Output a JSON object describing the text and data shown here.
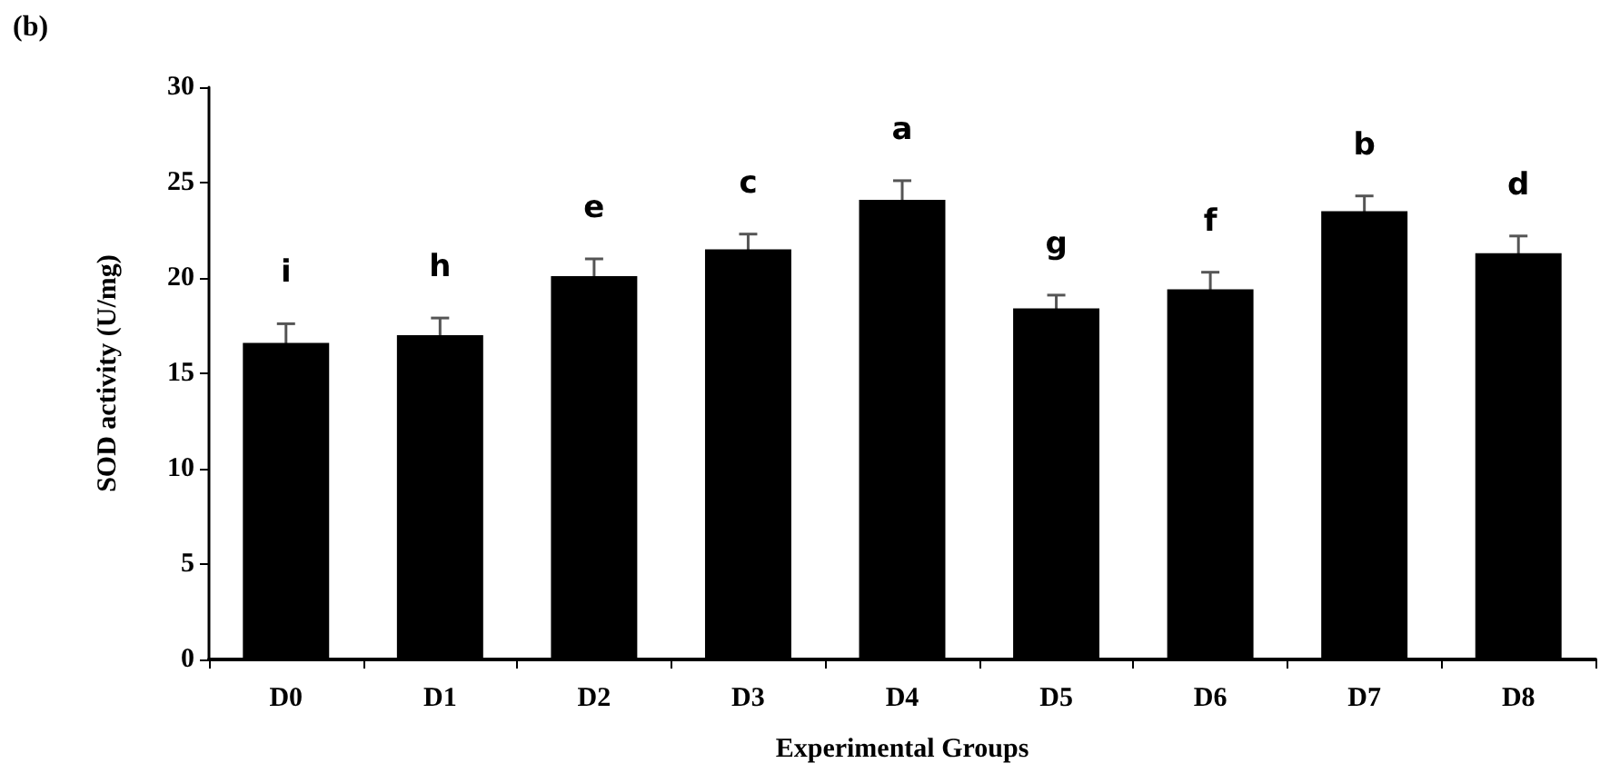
{
  "chart_data": {
    "type": "bar",
    "title": "(b)",
    "xlabel": "Experimental Groups",
    "ylabel": "SOD activity (U/mg)",
    "categories": [
      "D0",
      "D1",
      "D2",
      "D3",
      "D4",
      "D5",
      "D6",
      "D7",
      "D8"
    ],
    "values": [
      16.6,
      17.0,
      20.1,
      21.5,
      24.1,
      18.4,
      19.4,
      23.5,
      21.3
    ],
    "errors": [
      1.0,
      0.9,
      0.9,
      0.8,
      1.0,
      0.7,
      0.9,
      0.8,
      0.9
    ],
    "color": "#000000",
    "ylim": [
      0,
      30
    ],
    "yticks": [
      0,
      5,
      10,
      15,
      20,
      25,
      30
    ],
    "grid": false,
    "annotations": [
      "i",
      "h",
      "e",
      "c",
      "a",
      "g",
      "f",
      "b",
      "d"
    ]
  }
}
